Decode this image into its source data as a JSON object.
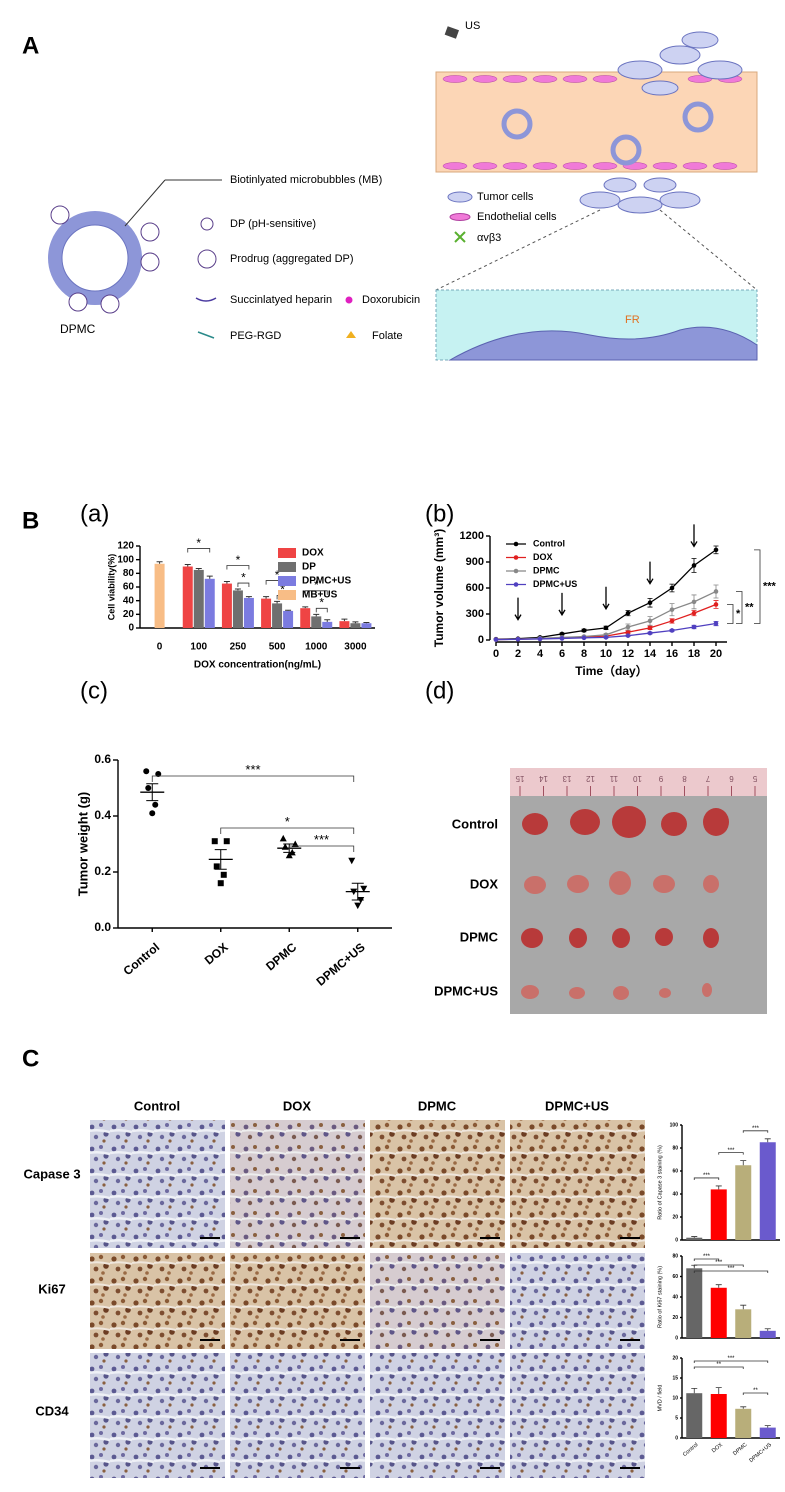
{
  "figure": {
    "panel_labels": [
      "A",
      "B",
      "C"
    ],
    "subpanel_labels": [
      "(a)",
      "(b)",
      "(c)",
      "(d)"
    ],
    "diagram": {
      "us": "US",
      "mb": "Biotinlyated microbubbles (MB)",
      "dp": "DP (pH-sensitive)",
      "prodrug": "Prodrug (aggregated DP)",
      "heparin": "Succinlatyed heparin",
      "dox": "Doxorubicin",
      "peg": "PEG-RGD",
      "folate": "Folate",
      "dpmc": "DPMC",
      "tumor": "Tumor cells",
      "endo": "Endothelial cells",
      "integrin": "αvβ3",
      "fr": "FR"
    },
    "photo": {
      "row_labels": [
        "Control",
        "DOX",
        "DPMC",
        "DPMC+US"
      ],
      "ruler_ticks": [
        15,
        14,
        13,
        12,
        11,
        10,
        9,
        8,
        7,
        6,
        5
      ]
    },
    "histology": {
      "columns": [
        "Control",
        "DOX",
        "DPMC",
        "DPMC+US"
      ],
      "rows": [
        "Capase 3",
        "Ki67",
        "CD34"
      ]
    }
  },
  "chart_data": [
    {
      "type": "bar",
      "x_label": "DOX concentration(ng/mL)",
      "y_label": "Cell viability(%)",
      "categories": [
        "0",
        "100",
        "250",
        "500",
        "1000",
        "3000"
      ],
      "series": [
        {
          "name": "DOX",
          "color": "#ef4444",
          "values": [
            null,
            90,
            65,
            43,
            29,
            10
          ],
          "errors": [
            null,
            3,
            3,
            3,
            2,
            3
          ]
        },
        {
          "name": "DP",
          "color": "#6f6f6f",
          "values": [
            null,
            85,
            55,
            36,
            17,
            7
          ],
          "errors": [
            null,
            2,
            2,
            3,
            3,
            2
          ]
        },
        {
          "name": "DPMC+US",
          "color": "#7b7be0",
          "values": [
            null,
            72,
            44,
            25,
            9,
            7
          ],
          "errors": [
            null,
            4,
            2,
            1,
            3,
            1
          ]
        },
        {
          "name": "MB+US",
          "color": "#f8bd86",
          "values": [
            94,
            null,
            null,
            null,
            null,
            null
          ],
          "errors": [
            3,
            null,
            null,
            null,
            null,
            null
          ]
        }
      ],
      "ylim": [
        0,
        120
      ],
      "yticks": [
        0,
        20,
        40,
        60,
        80,
        100,
        120
      ],
      "legend": "upper right",
      "significance": [
        "*",
        "*",
        "*",
        "*",
        "*",
        "*",
        "*"
      ]
    },
    {
      "type": "line",
      "x_label": "Time（day）",
      "y_label": "Tumor volume (mm³)",
      "x": [
        0,
        2,
        4,
        6,
        8,
        10,
        12,
        14,
        16,
        18,
        20
      ],
      "series": [
        {
          "name": "Control",
          "color": "#000000",
          "values": [
            10,
            15,
            30,
            70,
            110,
            140,
            310,
            430,
            600,
            860,
            1040
          ],
          "errors": [
            3,
            5,
            8,
            10,
            15,
            20,
            30,
            50,
            45,
            80,
            45
          ]
        },
        {
          "name": "DOX",
          "color": "#e02020",
          "values": [
            5,
            10,
            15,
            25,
            35,
            45,
            90,
            140,
            220,
            310,
            410
          ],
          "errors": [
            2,
            3,
            5,
            6,
            8,
            10,
            15,
            20,
            25,
            30,
            45
          ]
        },
        {
          "name": "DPMC",
          "color": "#888888",
          "values": [
            5,
            10,
            20,
            30,
            40,
            60,
            150,
            220,
            350,
            440,
            560
          ],
          "errors": [
            2,
            3,
            5,
            6,
            8,
            12,
            35,
            50,
            70,
            80,
            75
          ]
        },
        {
          "name": "DPMC+US",
          "color": "#5040c0",
          "values": [
            5,
            8,
            12,
            18,
            25,
            30,
            50,
            80,
            110,
            150,
            190
          ],
          "errors": [
            2,
            2,
            3,
            4,
            5,
            6,
            8,
            10,
            12,
            20,
            25
          ]
        }
      ],
      "xlim": [
        0,
        21
      ],
      "xticks": [
        0,
        2,
        4,
        6,
        8,
        10,
        12,
        14,
        16,
        18,
        20
      ],
      "ylim": [
        0,
        1200
      ],
      "yticks": [
        0,
        300,
        600,
        900,
        1200
      ],
      "legend": "upper left",
      "dosing_days": [
        2,
        6,
        10,
        14,
        18
      ],
      "significance": [
        "***",
        "**",
        "*"
      ]
    },
    {
      "type": "dotplot",
      "y_label": "Tumor weight (g)",
      "categories": [
        "Control",
        "DOX",
        "DPMC",
        "DPMC+US"
      ],
      "markers": [
        "circle",
        "square",
        "triangle",
        "triangle-down"
      ],
      "values": [
        [
          0.56,
          0.55,
          0.5,
          0.44,
          0.41
        ],
        [
          0.31,
          0.31,
          0.22,
          0.19,
          0.16
        ],
        [
          0.32,
          0.3,
          0.29,
          0.27,
          0.26
        ],
        [
          0.24,
          0.14,
          0.13,
          0.1,
          0.08
        ]
      ],
      "means": [
        0.485,
        0.245,
        0.285,
        0.13
      ],
      "sems": [
        0.03,
        0.035,
        0.015,
        0.03
      ],
      "ylim": [
        0,
        0.6
      ],
      "yticks": [
        {
          "value": 0,
          "label": "0.0"
        },
        {
          "value": 0.2,
          "label": "0.2"
        },
        {
          "value": 0.4,
          "label": "0.4"
        },
        {
          "value": 0.6,
          "label": "0.6"
        }
      ],
      "significance": [
        "***",
        "*",
        "***"
      ]
    },
    {
      "type": "bar",
      "y_label": "Ratio of Capase 3 staining (%)",
      "colors": [
        "#666666",
        "#ff0000",
        "#b8ae7a",
        "#6a5acd"
      ],
      "values": [
        2,
        44,
        65,
        85
      ],
      "errors": [
        1,
        3,
        4,
        3
      ],
      "ylim": [
        0,
        100
      ],
      "yticks": [
        0,
        20,
        40,
        60,
        80,
        100
      ],
      "significance": [
        "***",
        "***",
        "***"
      ]
    },
    {
      "type": "bar",
      "y_label": "Ratio of Ki67 staining (%)",
      "colors": [
        "#666666",
        "#ff0000",
        "#b8ae7a",
        "#6a5acd"
      ],
      "values": [
        68,
        49,
        28,
        7
      ],
      "errors": [
        3,
        3,
        4,
        2
      ],
      "ylim": [
        0,
        80
      ],
      "yticks": [
        0,
        20,
        40,
        60,
        80
      ],
      "significance": [
        "***",
        "***",
        "***"
      ]
    },
    {
      "type": "bar",
      "y_label": "MVD / field",
      "colors": [
        "#666666",
        "#ff0000",
        "#b8ae7a",
        "#6a5acd"
      ],
      "categories": [
        "Control",
        "DOX",
        "DPMC",
        "DPMC+US"
      ],
      "values": [
        11.2,
        11,
        7.3,
        2.6
      ],
      "errors": [
        1.2,
        1.6,
        0.5,
        0.5
      ],
      "ylim": [
        0,
        20
      ],
      "yticks": [
        0,
        5,
        10,
        15,
        20
      ],
      "significance": [
        "***",
        "**",
        "**"
      ]
    }
  ]
}
